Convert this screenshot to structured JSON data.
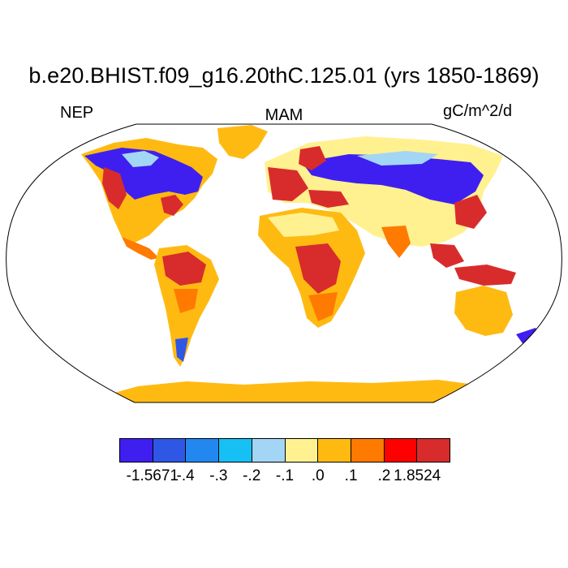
{
  "title": "b.e20.BHIST.f09_g16.20thC.125.01 (yrs 1850-1869)",
  "left_label": "NEP",
  "center_label": "MAM",
  "units_label": "gC/m^2/d",
  "colorbar": {
    "colors": [
      "#3f1ff0",
      "#2f57e6",
      "#2288f0",
      "#17c0f4",
      "#a3d6f5",
      "#fff18f",
      "#ffba12",
      "#ff7a00",
      "#ff0000",
      "#d82c2c"
    ],
    "tick_labels": [
      "-1.5671",
      "-.4",
      "-.3",
      "-.2",
      "-.1",
      ".0",
      ".1",
      ".2",
      "1.8524"
    ]
  },
  "map": {
    "projection": "Robinson",
    "ocean_color": "#ffffff",
    "outline_color": "#000000"
  }
}
